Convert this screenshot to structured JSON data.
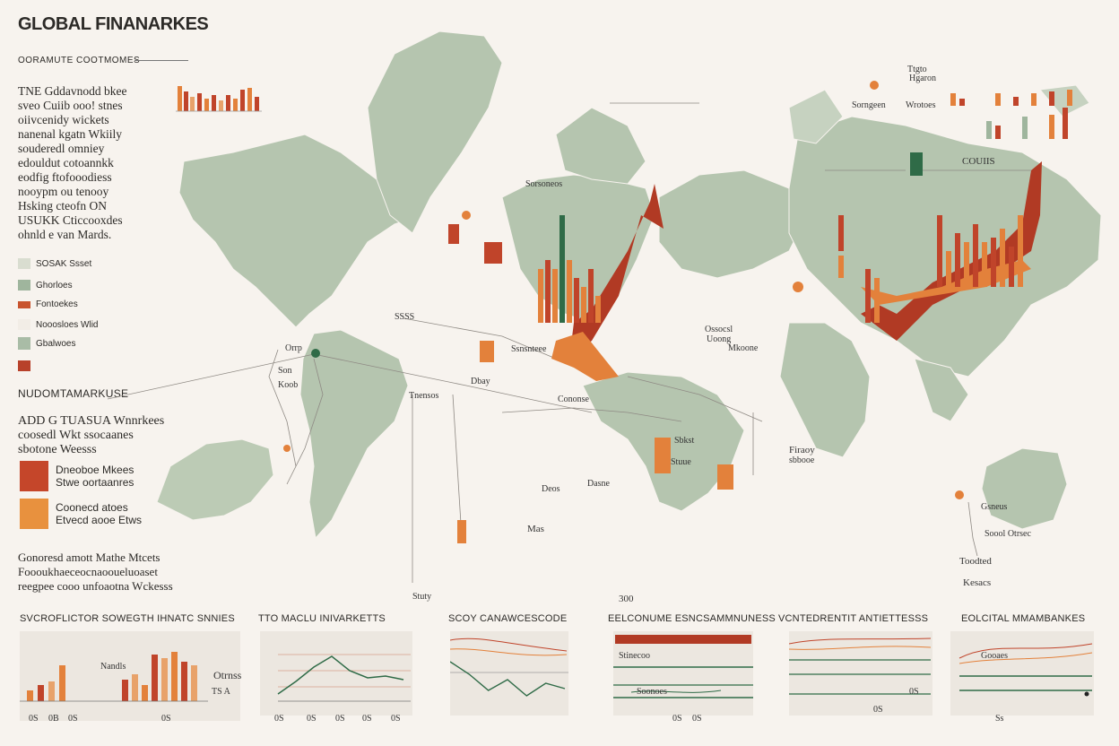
{
  "header": {
    "title": "GLOBAL FINANARKES",
    "subtitle": "OORAMUTE COOTMOMES"
  },
  "intro_lines": [
    "TNE Gddavnodd bkee",
    "sveo Cuiib ooo! stnes",
    "oiivcenidy wickets",
    "nanenal kgatn Wkiily",
    "souderedl omniey",
    "edouldut cotoannkk",
    "eodfig ftofooodiess",
    "nooypm ou tenooy",
    "Hsking cteofn ON",
    "USUKK Cticcooxdes",
    "ohnld e van Mards."
  ],
  "legend": [
    {
      "label": "SOSAK Ssset",
      "color": "#d9ddd0"
    },
    {
      "label": "Ghorloes",
      "color": "#9fb59d"
    },
    {
      "label": "Fontoekes",
      "color": "#c8532d"
    },
    {
      "label": "Nooosloes Wlid",
      "color": "#f2ede6"
    },
    {
      "label": "Gbalwoes",
      "color": "#a9bca6"
    },
    {
      "label": "",
      "color": "#b8412a"
    }
  ],
  "section_header": "NUDOMTAMARKUSE",
  "summary_lines": [
    "ADD G TUASUA Wnnrkees",
    "coosedl Wkt ssocaanes",
    "sbotone Weesss"
  ],
  "key2": [
    {
      "lines": [
        "Dneoboe Mkees",
        "Stwe oortaanres"
      ],
      "color": "#c5462a"
    },
    {
      "lines": [
        "Coonecd atoes",
        "Etvecd aooe Etws"
      ],
      "color": "#e8913e"
    }
  ],
  "footer_note": [
    "Gonoresd amott Mathe Mtcets",
    "Foooukhaeceocnaooueluoaset",
    "reegpee cooo unfoaotna Wckesss"
  ],
  "map_labels": {
    "eurasia_top": "COUIIS",
    "right_top_a": "Ttgto",
    "right_top_b": "Hgaron",
    "right_top_c": "Wrotoes",
    "right_top_d": "Sorngeen",
    "mid_top": "Sorsoneos",
    "am_label_a": "SSSS",
    "am_label_b": "Orrp",
    "am_label_c": "Son",
    "am_label_d": "Koob",
    "am_label_e": "Tnensos",
    "am_label_f": "Dbay",
    "eu_label_a": "Ssnsnteee",
    "eu_label_b": "Cononse",
    "af_label_a": "Ossocsl",
    "af_label_b": "Uoong",
    "af_label_c": "Mkoone",
    "af_label_d": "Sbkst",
    "af_label_e": "Stuue",
    "af_label_f": "Deos",
    "af_label_g": "Dasne",
    "af_label_h": "Mas",
    "as_label_a": "Firaoy",
    "as_label_b": "sbbooe",
    "aus_label_a": "Gsneus",
    "aus_label_b": "Soool Otrsec",
    "aus_label_c": "Toodted",
    "aus_label_d": "Kesacs",
    "bottom_a": "Stuty",
    "bottom_b": "300"
  },
  "panels": [
    {
      "title": "SVCROFLICTOR SOWEGTH IHNATC SNNIES",
      "label_a": "Nandls",
      "label_b": "Otrnss",
      "x_labels": [
        "0S",
        "0B",
        "0S",
        "0S"
      ],
      "bars": [
        12,
        18,
        22,
        40,
        24,
        30,
        18,
        52,
        48,
        55,
        44,
        40
      ],
      "extra": "TS A"
    },
    {
      "title": "TTO MACLU INIVARKETTS",
      "x_labels": [
        "0S",
        "0S",
        "0S",
        "0S",
        "0S"
      ],
      "line": [
        10,
        24,
        40,
        52,
        36,
        28,
        30,
        26
      ]
    },
    {
      "title": "SCOY CANAWCESCODE",
      "line": [
        50,
        36,
        18,
        30,
        12,
        26,
        20
      ]
    },
    {
      "title": "EELCONUME ESNCSAMMNUNESS",
      "label_a": "Stinecoo",
      "label_b": "Soonoes",
      "x_labels": [
        "0S",
        "0S"
      ]
    },
    {
      "title": "VCNTEDRENTIT ANTIETTESSS",
      "label_a": "0S",
      "label_b": "0S"
    },
    {
      "title": "EOLCITAL MMAMBANKES",
      "label_a": "Gooaes",
      "label_b": "Ss"
    }
  ],
  "colors": {
    "land": "#b3c3ad",
    "land_light": "#c8d3c2",
    "red": "#c0442a",
    "orange": "#e3813b",
    "deep_red": "#a83222",
    "green_dark": "#2f6b47"
  }
}
